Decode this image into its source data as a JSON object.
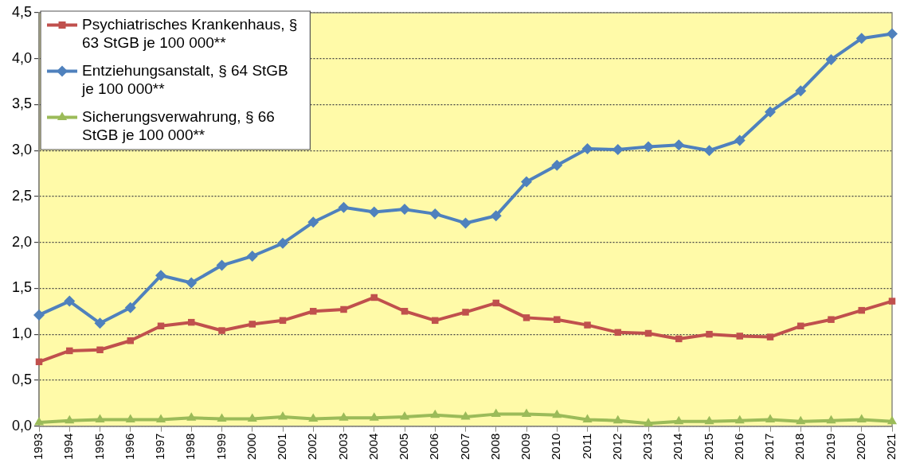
{
  "chart_data": {
    "type": "line",
    "categories": [
      "1993",
      "1994",
      "1995",
      "1996",
      "1997",
      "1998",
      "1999",
      "2000",
      "2001",
      "2002",
      "2003",
      "2004",
      "2005",
      "2006",
      "2007",
      "2008",
      "2009",
      "2010",
      "2011",
      "2012",
      "2013",
      "2014",
      "2015",
      "2016",
      "2017",
      "2018",
      "2019",
      "2020",
      "2021"
    ],
    "series": [
      {
        "name": "Psychiatrisches Krankenhaus, § 63 StGB je 100 000**",
        "color": "#c0504d",
        "marker": "square",
        "values": [
          0.7,
          0.82,
          0.83,
          0.93,
          1.09,
          1.13,
          1.04,
          1.11,
          1.15,
          1.25,
          1.27,
          1.4,
          1.25,
          1.15,
          1.24,
          1.34,
          1.18,
          1.16,
          1.1,
          1.02,
          1.01,
          0.95,
          1.0,
          0.98,
          0.97,
          1.09,
          1.16,
          1.26,
          1.36
        ]
      },
      {
        "name": "Entziehungsanstalt, § 64 StGB je 100 000**",
        "color": "#4f81bd",
        "marker": "diamond",
        "values": [
          1.21,
          1.36,
          1.12,
          1.29,
          1.64,
          1.56,
          1.75,
          1.85,
          1.99,
          2.22,
          2.38,
          2.33,
          2.36,
          2.31,
          2.21,
          2.29,
          2.66,
          2.84,
          3.02,
          3.01,
          3.04,
          3.06,
          3.0,
          3.11,
          3.42,
          3.65,
          3.99,
          4.22,
          4.27
        ]
      },
      {
        "name": "Sicherungsverwahrung, § 66 StGB je 100 000**",
        "color": "#9bbb59",
        "marker": "triangle",
        "values": [
          0.04,
          0.06,
          0.07,
          0.07,
          0.07,
          0.09,
          0.08,
          0.08,
          0.1,
          0.08,
          0.09,
          0.09,
          0.1,
          0.12,
          0.1,
          0.13,
          0.13,
          0.12,
          0.07,
          0.06,
          0.03,
          0.05,
          0.05,
          0.06,
          0.07,
          0.05,
          0.06,
          0.07,
          0.05
        ]
      }
    ],
    "ylim": [
      0,
      4.5
    ],
    "yticks": [
      {
        "value": 0,
        "label": "0,0"
      },
      {
        "value": 0.5,
        "label": "0,5"
      },
      {
        "value": 1,
        "label": "1,0"
      },
      {
        "value": 1.5,
        "label": "1,5"
      },
      {
        "value": 2,
        "label": "2,0"
      },
      {
        "value": 2.5,
        "label": "2,5"
      },
      {
        "value": 3,
        "label": "3,0"
      },
      {
        "value": 3.5,
        "label": "3,5"
      },
      {
        "value": 4,
        "label": "4,0"
      },
      {
        "value": 4.5,
        "label": "4,5"
      }
    ],
    "grid": "y",
    "legend": "top left"
  }
}
